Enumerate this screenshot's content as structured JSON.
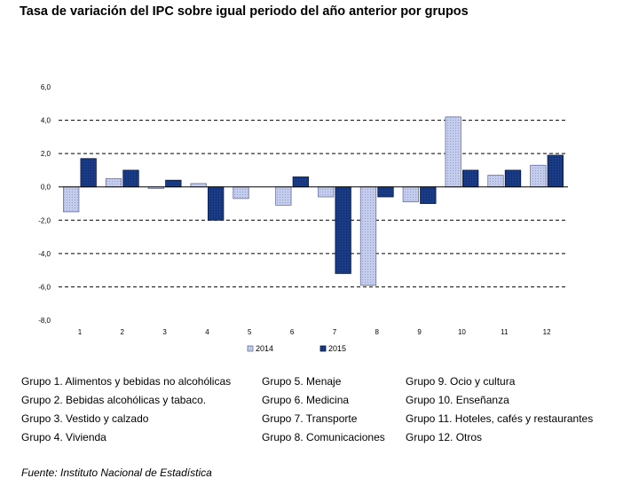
{
  "title": "Tasa de variación del IPC sobre igual periodo del año anterior por grupos",
  "chart_data": {
    "type": "bar",
    "categories": [
      "1",
      "2",
      "3",
      "4",
      "5",
      "6",
      "7",
      "8",
      "9",
      "10",
      "11",
      "12"
    ],
    "series": [
      {
        "name": "2014",
        "values": [
          -1.5,
          0.5,
          -0.1,
          0.2,
          -0.7,
          -1.1,
          -0.6,
          -5.9,
          -0.9,
          4.2,
          0.7,
          1.3
        ],
        "color": "#b7c2e6"
      },
      {
        "name": "2015",
        "values": [
          1.7,
          1.0,
          0.4,
          -2.0,
          0.0,
          0.6,
          -5.2,
          -0.6,
          -1.0,
          1.0,
          1.0,
          1.9
        ],
        "color": "#15357a"
      }
    ],
    "yticks": [
      "6,0",
      "4,0",
      "2,0",
      "0,0",
      "-2,0",
      "-4,0",
      "-6,0",
      "-8,0"
    ],
    "ylim": [
      -8,
      6
    ],
    "grid": "dashed horizontal",
    "legend_position": "bottom-center"
  },
  "groups": {
    "col1": [
      "Grupo 1. Alimentos y bebidas no alcohólicas",
      "Grupo 2. Bebidas alcohólicas y  tabaco.",
      "Grupo 3. Vestido y calzado",
      "Grupo 4. Vivienda"
    ],
    "col2": [
      "Grupo 5. Menaje",
      "Grupo 6. Medicina",
      "Grupo 7. Transporte",
      "Grupo 8. Comunicaciones"
    ],
    "col3": [
      "Grupo 9. Ocio y cultura",
      "Grupo 10. Enseñanza",
      "Grupo 11. Hoteles, cafés y restaurantes",
      "Grupo 12. Otros"
    ]
  },
  "source": "Fuente: Instituto Nacional de Estadística"
}
